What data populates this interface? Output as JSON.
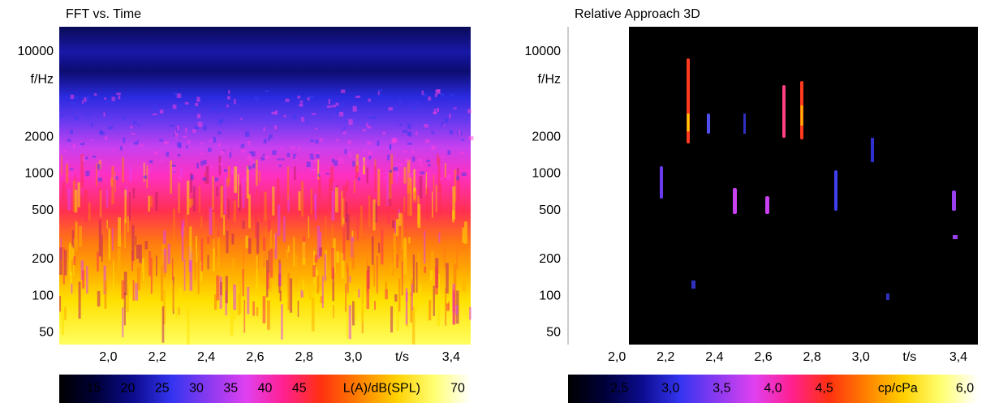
{
  "chart_data": [
    {
      "type": "spectrogram",
      "title": "FFT vs. Time",
      "x_label": "t/s",
      "y_label": "f/Hz",
      "xlim": [
        1.8,
        3.48
      ],
      "xticks": [
        {
          "value": 2.0,
          "label": "2,0"
        },
        {
          "value": 2.2,
          "label": "2,2"
        },
        {
          "value": 2.4,
          "label": "2,4"
        },
        {
          "value": 2.6,
          "label": "2,6"
        },
        {
          "value": 2.8,
          "label": "2,8"
        },
        {
          "value": 3.0,
          "label": "3,0"
        },
        {
          "value": 3.4,
          "label": "3,4"
        }
      ],
      "ylim": [
        40,
        16000
      ],
      "y_log": true,
      "yticks": [
        50,
        100,
        200,
        500,
        1000,
        2000,
        10000
      ],
      "colorbar": {
        "label": "L(A)/dB(SPL)",
        "clim": [
          10,
          70
        ],
        "ticks": [
          15,
          20,
          25,
          30,
          35,
          40,
          45,
          70
        ],
        "colormap": [
          "#000000",
          "#00003a",
          "#0c0c90",
          "#3434f0",
          "#8a3af0",
          "#e040f0",
          "#ff2090",
          "#ff3010",
          "#ff8000",
          "#ffd000",
          "#ffff70",
          "#ffffff"
        ]
      }
    },
    {
      "type": "spectrogram",
      "title": "Relative Approach 3D",
      "x_label": "t/s",
      "y_label": "f/Hz",
      "xlim": [
        1.8,
        3.48
      ],
      "xticks": [
        {
          "value": 2.0,
          "label": "2,0"
        },
        {
          "value": 2.2,
          "label": "2,2"
        },
        {
          "value": 2.4,
          "label": "2,4"
        },
        {
          "value": 2.6,
          "label": "2,6"
        },
        {
          "value": 2.8,
          "label": "2,8"
        },
        {
          "value": 3.0,
          "label": "3,0"
        },
        {
          "value": 3.4,
          "label": "3,4"
        }
      ],
      "ylim": [
        40,
        16000
      ],
      "y_log": true,
      "yticks": [
        50,
        100,
        200,
        500,
        1000,
        2000,
        10000
      ],
      "colorbar": {
        "label": "cp/cPa",
        "clim": [
          2.0,
          6.0
        ],
        "ticks": [
          {
            "value": 2.5,
            "label": "2,5"
          },
          {
            "value": 3.0,
            "label": "3,0"
          },
          {
            "value": 3.5,
            "label": "3,5"
          },
          {
            "value": 4.0,
            "label": "4,0"
          },
          {
            "value": 4.5,
            "label": "4,5"
          },
          {
            "value": 6.0,
            "label": "6,0"
          }
        ],
        "colormap": [
          "#000000",
          "#00003a",
          "#0c0c90",
          "#3434f0",
          "#8a3af0",
          "#e040f0",
          "#ff2090",
          "#ff3010",
          "#ff8000",
          "#ffd000",
          "#ffff70",
          "#ffffff"
        ]
      }
    }
  ]
}
